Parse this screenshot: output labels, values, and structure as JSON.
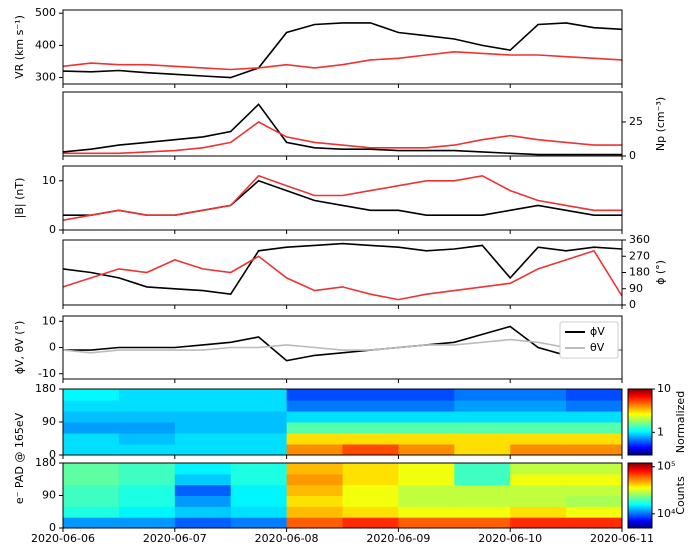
{
  "chart_data": [
    {
      "type": "line",
      "ylabel": "VR (km s⁻¹)",
      "yaxis": "left",
      "ylim": [
        280,
        510
      ],
      "yticks": [
        300,
        400,
        500
      ],
      "x": [
        "2020-06-06T00:00",
        "2020-06-06T06:00",
        "2020-06-06T12:00",
        "2020-06-06T18:00",
        "2020-06-07T00:00",
        "2020-06-07T06:00",
        "2020-06-07T12:00",
        "2020-06-07T18:00",
        "2020-06-08T00:00",
        "2020-06-08T06:00",
        "2020-06-08T12:00",
        "2020-06-08T18:00",
        "2020-06-09T00:00",
        "2020-06-09T06:00",
        "2020-06-09T12:00",
        "2020-06-09T18:00",
        "2020-06-10T00:00",
        "2020-06-10T06:00",
        "2020-06-10T12:00",
        "2020-06-10T18:00",
        "2020-06-11T00:00"
      ],
      "series": [
        {
          "color": "#000000",
          "values": [
            320,
            318,
            322,
            315,
            310,
            305,
            300,
            330,
            440,
            465,
            470,
            470,
            440,
            430,
            420,
            400,
            385,
            465,
            470,
            455,
            450
          ]
        },
        {
          "color": "#ee3333",
          "values": [
            335,
            345,
            340,
            340,
            335,
            330,
            325,
            330,
            340,
            330,
            340,
            355,
            360,
            370,
            380,
            375,
            370,
            370,
            365,
            360,
            355
          ]
        }
      ]
    },
    {
      "type": "line",
      "ylabel": "Np (cm⁻³)",
      "yaxis": "right",
      "ylim": [
        0,
        47
      ],
      "yticks": [
        0,
        25
      ],
      "x": [
        "2020-06-06T00:00",
        "2020-06-06T06:00",
        "2020-06-06T12:00",
        "2020-06-06T18:00",
        "2020-06-07T00:00",
        "2020-06-07T06:00",
        "2020-06-07T12:00",
        "2020-06-07T18:00",
        "2020-06-08T00:00",
        "2020-06-08T06:00",
        "2020-06-08T12:00",
        "2020-06-08T18:00",
        "2020-06-09T00:00",
        "2020-06-09T06:00",
        "2020-06-09T12:00",
        "2020-06-09T18:00",
        "2020-06-10T00:00",
        "2020-06-10T06:00",
        "2020-06-10T12:00",
        "2020-06-10T18:00",
        "2020-06-11T00:00"
      ],
      "series": [
        {
          "color": "#000000",
          "values": [
            3,
            5,
            8,
            10,
            12,
            14,
            18,
            38,
            10,
            6,
            5,
            5,
            4,
            4,
            4,
            3,
            2,
            1,
            1,
            1,
            1
          ]
        },
        {
          "color": "#ee3333",
          "values": [
            2,
            2,
            2,
            3,
            4,
            6,
            10,
            25,
            14,
            10,
            8,
            6,
            6,
            6,
            8,
            12,
            15,
            12,
            10,
            8,
            8
          ]
        }
      ]
    },
    {
      "type": "line",
      "ylabel": "|B| (nT)",
      "yaxis": "left",
      "ylim": [
        0,
        13
      ],
      "yticks": [
        0,
        10
      ],
      "x": [
        "2020-06-06T00:00",
        "2020-06-06T06:00",
        "2020-06-06T12:00",
        "2020-06-06T18:00",
        "2020-06-07T00:00",
        "2020-06-07T06:00",
        "2020-06-07T12:00",
        "2020-06-07T18:00",
        "2020-06-08T00:00",
        "2020-06-08T06:00",
        "2020-06-08T12:00",
        "2020-06-08T18:00",
        "2020-06-09T00:00",
        "2020-06-09T06:00",
        "2020-06-09T12:00",
        "2020-06-09T18:00",
        "2020-06-10T00:00",
        "2020-06-10T06:00",
        "2020-06-10T12:00",
        "2020-06-10T18:00",
        "2020-06-11T00:00"
      ],
      "series": [
        {
          "color": "#000000",
          "values": [
            3,
            3,
            4,
            3,
            3,
            4,
            5,
            10,
            8,
            6,
            5,
            4,
            4,
            3,
            3,
            3,
            4,
            5,
            4,
            3,
            3
          ]
        },
        {
          "color": "#ee3333",
          "values": [
            2,
            3,
            4,
            3,
            3,
            4,
            5,
            11,
            9,
            7,
            7,
            8,
            9,
            10,
            10,
            11,
            8,
            6,
            5,
            4,
            4
          ]
        }
      ]
    },
    {
      "type": "line",
      "ylabel": "ϕ (°)",
      "yaxis": "right",
      "ylim": [
        0,
        360
      ],
      "yticks": [
        0,
        90,
        180,
        270,
        360
      ],
      "x": [
        "2020-06-06T00:00",
        "2020-06-06T06:00",
        "2020-06-06T12:00",
        "2020-06-06T18:00",
        "2020-06-07T00:00",
        "2020-06-07T06:00",
        "2020-06-07T12:00",
        "2020-06-07T18:00",
        "2020-06-08T00:00",
        "2020-06-08T06:00",
        "2020-06-08T12:00",
        "2020-06-08T18:00",
        "2020-06-09T00:00",
        "2020-06-09T06:00",
        "2020-06-09T12:00",
        "2020-06-09T18:00",
        "2020-06-10T00:00",
        "2020-06-10T06:00",
        "2020-06-10T12:00",
        "2020-06-10T18:00",
        "2020-06-11T00:00"
      ],
      "series": [
        {
          "color": "#000000",
          "values": [
            200,
            180,
            150,
            100,
            90,
            80,
            60,
            300,
            320,
            330,
            340,
            330,
            320,
            300,
            310,
            330,
            150,
            320,
            300,
            320,
            310
          ]
        },
        {
          "color": "#ee3333",
          "values": [
            100,
            150,
            200,
            180,
            250,
            200,
            180,
            270,
            150,
            80,
            100,
            60,
            30,
            60,
            80,
            100,
            120,
            200,
            250,
            300,
            50
          ]
        }
      ]
    },
    {
      "type": "line",
      "ylabel": "ϕV, θV (°)",
      "yaxis": "left",
      "ylim": [
        -12,
        12
      ],
      "yticks": [
        -10,
        0,
        10
      ],
      "legend": "upper right",
      "x": [
        "2020-06-06T00:00",
        "2020-06-06T06:00",
        "2020-06-06T12:00",
        "2020-06-06T18:00",
        "2020-06-07T00:00",
        "2020-06-07T06:00",
        "2020-06-07T12:00",
        "2020-06-07T18:00",
        "2020-06-08T00:00",
        "2020-06-08T06:00",
        "2020-06-08T12:00",
        "2020-06-08T18:00",
        "2020-06-09T00:00",
        "2020-06-09T06:00",
        "2020-06-09T12:00",
        "2020-06-09T18:00",
        "2020-06-10T00:00",
        "2020-06-10T06:00",
        "2020-06-10T12:00",
        "2020-06-10T18:00",
        "2020-06-11T00:00"
      ],
      "series": [
        {
          "name": "ϕV",
          "color": "#000000",
          "values": [
            -1,
            -1,
            0,
            0,
            0,
            1,
            2,
            4,
            -5,
            -3,
            -2,
            -1,
            0,
            1,
            2,
            5,
            8,
            0,
            -3,
            -1,
            -1
          ]
        },
        {
          "name": "θV",
          "color": "#bbbbbb",
          "values": [
            -1,
            -2,
            -1,
            -1,
            -1,
            -1,
            0,
            0,
            1,
            0,
            -1,
            -1,
            0,
            1,
            1,
            2,
            3,
            2,
            0,
            -1,
            -1
          ]
        }
      ]
    },
    {
      "type": "heatmap",
      "ylabel": "e⁻ PAD @ 165eV",
      "ylim": [
        0,
        180
      ],
      "yticks": [
        0,
        90,
        180
      ],
      "x": [
        "2020-06-06T00:00",
        "2020-06-06T12:00",
        "2020-06-07T00:00",
        "2020-06-07T12:00",
        "2020-06-08T00:00",
        "2020-06-08T12:00",
        "2020-06-09T00:00",
        "2020-06-09T12:00",
        "2020-06-10T00:00",
        "2020-06-10T12:00",
        "2020-06-11T00:00"
      ],
      "y": [
        0,
        30,
        60,
        90,
        120,
        150,
        180
      ],
      "values": [
        [
          1,
          1,
          1,
          1,
          4,
          5,
          4,
          3,
          4,
          4
        ],
        [
          1,
          0.9,
          1,
          1,
          3,
          3,
          3,
          3,
          3,
          3
        ],
        [
          0.8,
          0.8,
          0.9,
          0.9,
          1.5,
          1.5,
          1.5,
          1.5,
          1.5,
          1.5
        ],
        [
          0.9,
          0.9,
          0.9,
          0.9,
          1,
          1,
          1,
          1,
          1,
          1
        ],
        [
          1,
          1,
          1,
          1,
          0.7,
          0.7,
          0.7,
          0.8,
          0.8,
          0.7
        ],
        [
          1.1,
          1,
          1,
          1,
          0.6,
          0.6,
          0.6,
          0.7,
          0.7,
          0.6
        ]
      ],
      "colorbar_label": "Normalized",
      "log": true,
      "clim": [
        0.3,
        10
      ],
      "cticks": [
        1,
        10
      ]
    },
    {
      "type": "heatmap",
      "ylim": [
        0,
        180
      ],
      "yticks": [
        0,
        90,
        180
      ],
      "x": [
        "2020-06-06T00:00",
        "2020-06-06T12:00",
        "2020-06-07T00:00",
        "2020-06-07T12:00",
        "2020-06-08T00:00",
        "2020-06-08T12:00",
        "2020-06-09T00:00",
        "2020-06-09T12:00",
        "2020-06-10T00:00",
        "2020-06-10T12:00",
        "2020-06-11T00:00"
      ],
      "y": [
        0,
        30,
        60,
        90,
        120,
        150,
        180
      ],
      "values": [
        [
          12000,
          12000,
          10000,
          11000,
          60000,
          70000,
          60000,
          60000,
          70000,
          70000
        ],
        [
          18000,
          16000,
          14000,
          15000,
          45000,
          40000,
          35000,
          35000,
          40000,
          35000
        ],
        [
          20000,
          18000,
          12000,
          16000,
          40000,
          35000,
          30000,
          30000,
          30000,
          28000
        ],
        [
          20000,
          18000,
          10000,
          16000,
          45000,
          35000,
          30000,
          30000,
          30000,
          30000
        ],
        [
          22000,
          20000,
          14000,
          18000,
          50000,
          40000,
          35000,
          20000,
          35000,
          35000
        ],
        [
          22000,
          20000,
          16000,
          18000,
          45000,
          40000,
          35000,
          20000,
          30000,
          30000
        ]
      ],
      "colorbar_label": "Counts",
      "log": true,
      "clim": [
        5000,
        120000
      ],
      "cticks": [
        {
          "value": 10000,
          "label": "10⁴"
        },
        {
          "value": 100000,
          "label": "10⁵"
        }
      ],
      "xlim": [
        "2020-06-06",
        "2020-06-11"
      ],
      "xticks": [
        "2020-06-06",
        "2020-06-07",
        "2020-06-08",
        "2020-06-09",
        "2020-06-10",
        "2020-06-11"
      ]
    }
  ]
}
